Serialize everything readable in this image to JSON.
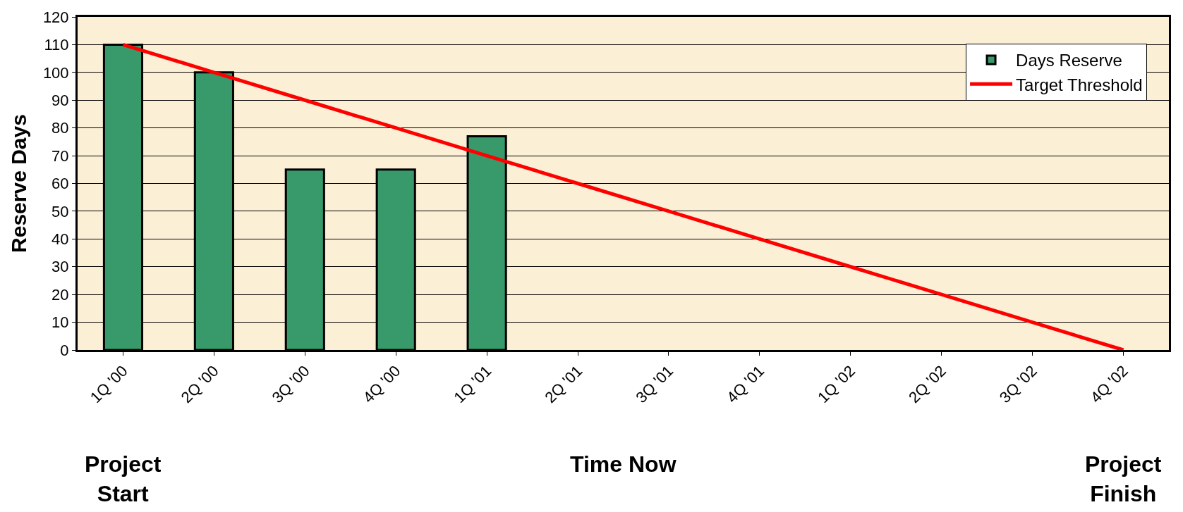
{
  "chart_data": {
    "type": "bar",
    "ylabel": "Reserve Days",
    "categories": [
      "1Q '00",
      "2Q '00",
      "3Q '00",
      "4Q '00",
      "1Q '01",
      "2Q '01",
      "3Q '01",
      "4Q '01",
      "1Q '02",
      "2Q '02",
      "3Q '02",
      "4Q '02"
    ],
    "series": [
      {
        "name": "Days Reserve",
        "color": "#38996a",
        "values": [
          110,
          100,
          65,
          65,
          77,
          null,
          null,
          null,
          null,
          null,
          null,
          null
        ]
      },
      {
        "name": "Target Threshold",
        "type": "line",
        "color": "#ff0000",
        "values": [
          110,
          100,
          90,
          80,
          70,
          60,
          50,
          40,
          30,
          20,
          10,
          0
        ]
      }
    ],
    "ylim": [
      0,
      120
    ],
    "yticks": [
      0,
      10,
      20,
      30,
      40,
      50,
      60,
      70,
      80,
      90,
      100,
      110,
      120
    ],
    "grid": "y",
    "legend": "top right",
    "marker": "none",
    "line_style": "solid",
    "annotations": [
      "Project\nStart",
      "Time Now",
      "Project\nFinish"
    ]
  }
}
